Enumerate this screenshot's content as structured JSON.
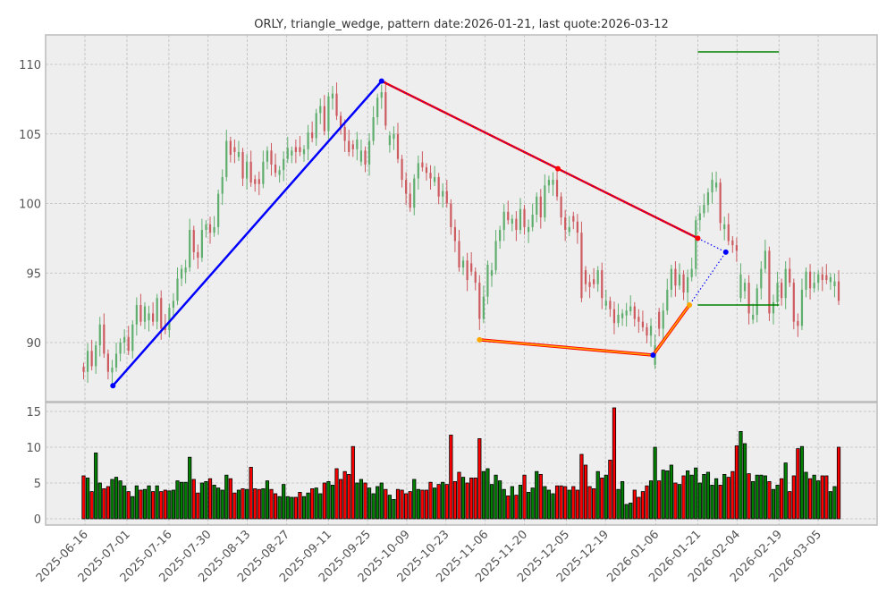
{
  "chart_data": {
    "type": "candlestick",
    "title": "ORLY, triangle_wedge, pattern date:2026-01-21, last quote:2026-03-12",
    "xlabel": "",
    "ylabel": "",
    "grid": true,
    "price_ylim": [
      86,
      112
    ],
    "price_yticks": [
      90,
      95,
      100,
      105,
      110
    ],
    "volume_ylim": [
      -0.5,
      16.5
    ],
    "volume_yticks": [
      0,
      5,
      10,
      15
    ],
    "x_start_date": "2025-06-16",
    "xticks": [
      "2025-06-16",
      "2025-07-01",
      "2025-07-16",
      "2025-07-30",
      "2025-08-13",
      "2025-08-27",
      "2025-09-11",
      "2025-09-25",
      "2025-10-09",
      "2025-10-23",
      "2025-11-06",
      "2025-11-20",
      "2025-12-05",
      "2025-12-19",
      "2026-01-06",
      "2026-01-21",
      "2026-02-04",
      "2026-02-19",
      "2026-03-05"
    ],
    "close": [
      87.9,
      89.4,
      88.3,
      89.8,
      91.3,
      89.2,
      87.9,
      88.2,
      89.2,
      90.0,
      90.4,
      89.4,
      91.3,
      92.7,
      91.5,
      92.6,
      92.1,
      91.5,
      93.2,
      91.0,
      90.9,
      92.5,
      93.0,
      94.6,
      95.3,
      95.4,
      98.1,
      96.5,
      96.1,
      98.1,
      98.5,
      97.9,
      98.3,
      100.7,
      101.9,
      104.5,
      103.5,
      103.7,
      103.7,
      101.8,
      103.0,
      101.5,
      101.4,
      101.4,
      103.0,
      103.8,
      102.8,
      102.2,
      102.4,
      103.2,
      104.0,
      103.8,
      103.7,
      103.7,
      103.9,
      105.1,
      104.7,
      106.5,
      107.0,
      105.2,
      107.7,
      107.9,
      106.3,
      105.5,
      104.5,
      103.7,
      103.9,
      104.6,
      103.8,
      102.8,
      104.5,
      106.2,
      107.6,
      108.0,
      105.6,
      104.9,
      105.0,
      103.2,
      101.7,
      100.7,
      99.7,
      101.8,
      102.9,
      102.6,
      102.2,
      101.8,
      101.9,
      100.5,
      100.9,
      100.0,
      98.3,
      97.3,
      95.4,
      95.9,
      94.5,
      95.1,
      94.3,
      91.7,
      93.3,
      95.6,
      95.2,
      97.3,
      98.1,
      99.4,
      98.8,
      98.9,
      98.1,
      99.6,
      98.3,
      98.3,
      99.2,
      100.5,
      99.0,
      101.3,
      101.7,
      101.7,
      100.5,
      99.0,
      98.1,
      98.3,
      98.7,
      97.9,
      93.2,
      94.2,
      94.0,
      94.2,
      95.2,
      93.2,
      93.0,
      92.4,
      91.4,
      92.0,
      92.1,
      92.3,
      92.6,
      91.7,
      91.5,
      91.1,
      90.5,
      91.2,
      89.8,
      91.0,
      92.3,
      93.8,
      95.3,
      94.1,
      94.9,
      93.6,
      94.7,
      95.3,
      98.8,
      99.3,
      99.9,
      100.8,
      101.7,
      101.5,
      98.6,
      98.5,
      97.3,
      97.0,
      96.6,
      94.9,
      94.3,
      92.1,
      92.0,
      93.9,
      95.3,
      96.6,
      92.1,
      92.9,
      94.3,
      93.2,
      95.3,
      94.3,
      91.5,
      91.2,
      93.8,
      95.1,
      93.9,
      94.3,
      94.9,
      94.5,
      94.5,
      94.7,
      94.4,
      93.0
    ],
    "direction": "RGRGGRRGGGGRGGRGGRGRRGGGGGGRRGGRGGGGRRGRGRRRGGRRGGGGRRGGRGGRGGRRRRRGGRGGGGRGGRRRRGGRRRGRGRRRRGRRRRGGGGGGRGRGRGGGRGGGRRRGRRRRRRGRGRRGGGGRRRRGGRGGGRGRGGGGGGGGRGRRRGGRGGGGRGGRGRRRGGRGGRRGGR",
    "volume": [
      6.0,
      5.7,
      3.8,
      9.2,
      5.0,
      4.2,
      4.5,
      5.5,
      5.8,
      5.3,
      4.6,
      3.8,
      3.1,
      4.6,
      4.0,
      4.1,
      4.6,
      3.8,
      4.6,
      3.8,
      4.0,
      3.9,
      4.0,
      5.3,
      5.1,
      5.1,
      8.6,
      5.5,
      3.6,
      5.0,
      5.2,
      5.6,
      4.7,
      4.3,
      4.0,
      6.1,
      5.6,
      3.6,
      4.0,
      4.2,
      4.1,
      7.2,
      4.2,
      4.1,
      4.2,
      5.3,
      4.1,
      3.5,
      3.1,
      4.8,
      3.1,
      3.0,
      3.0,
      3.7,
      3.1,
      3.6,
      4.2,
      4.3,
      3.5,
      5.0,
      5.2,
      4.7,
      7.0,
      5.5,
      6.6,
      6.2,
      10.1,
      5.0,
      5.5,
      5.0,
      4.3,
      3.5,
      4.5,
      5.0,
      4.1,
      3.3,
      2.7,
      4.1,
      4.0,
      3.5,
      3.8,
      5.5,
      4.1,
      4.0,
      4.0,
      5.1,
      4.3,
      4.8,
      5.1,
      4.8,
      11.7,
      5.2,
      6.5,
      5.8,
      5.0,
      5.7,
      5.7,
      11.2,
      6.6,
      7.0,
      4.8,
      6.1,
      5.3,
      4.1,
      3.2,
      4.5,
      3.3,
      4.7,
      6.1,
      3.7,
      4.3,
      6.6,
      6.2,
      4.5,
      4.0,
      3.5,
      4.6,
      4.6,
      4.5,
      4.0,
      4.5,
      4.0,
      9.0,
      7.5,
      4.5,
      4.2,
      6.6,
      5.7,
      6.1,
      8.2,
      15.5,
      4.1,
      5.2,
      2.0,
      2.2,
      4.0,
      3.0,
      3.8,
      4.6,
      5.3,
      10.0,
      5.3,
      6.8,
      6.7,
      7.5,
      5.0,
      4.8,
      6.0,
      6.7,
      6.1,
      7.1,
      5.0,
      6.2,
      6.5,
      4.7,
      5.6,
      4.7,
      6.2,
      5.8,
      6.6,
      10.2,
      12.2,
      10.5,
      6.3,
      5.2,
      6.1,
      6.1,
      6.0,
      5.2,
      4.1,
      4.7,
      5.6,
      7.8,
      3.8,
      6.0,
      9.8,
      10.1,
      6.5,
      5.6,
      6.1,
      5.3,
      6.0,
      6.0,
      3.8,
      4.5,
      10.0
    ],
    "pattern_lines": [
      {
        "name": "upper-left-leg",
        "color": "#0000ff",
        "style": "solid",
        "points": [
          [
            "2025-06-26",
            86.9
          ],
          [
            "2025-09-30",
            108.8
          ]
        ]
      },
      {
        "name": "upper-trend",
        "color": "#ff0000",
        "style": "solid",
        "points": [
          [
            "2025-09-30",
            108.8
          ],
          [
            "2025-12-02",
            102.5
          ],
          [
            "2026-01-21",
            97.5
          ]
        ]
      },
      {
        "name": "projection",
        "color": "#0000ff",
        "style": "dotted",
        "points": [
          [
            "2026-01-21",
            97.5
          ],
          [
            "2026-01-31",
            96.5
          ],
          [
            "2026-01-18",
            92.7
          ]
        ]
      },
      {
        "name": "lower-trend",
        "color": "#ffa500",
        "style": "solid",
        "points": [
          [
            "2025-11-04",
            90.2
          ],
          [
            "2026-01-05",
            89.1
          ],
          [
            "2026-01-18",
            92.7
          ]
        ]
      },
      {
        "name": "target-high",
        "color": "#008000",
        "style": "solid",
        "points": [
          [
            "2026-01-21",
            110.9
          ],
          [
            "2026-02-19",
            110.9
          ]
        ]
      },
      {
        "name": "target-low",
        "color": "#008000",
        "style": "solid",
        "points": [
          [
            "2026-01-21",
            92.7
          ],
          [
            "2026-02-19",
            92.7
          ]
        ]
      }
    ],
    "markers": [
      {
        "date": "2025-06-26",
        "price": 86.9,
        "color": "#0000ff"
      },
      {
        "date": "2025-09-30",
        "price": 108.8,
        "color": "#0000ff"
      },
      {
        "date": "2025-12-02",
        "price": 102.5,
        "color": "#ff0000"
      },
      {
        "date": "2026-01-21",
        "price": 97.5,
        "color": "#ff0000"
      },
      {
        "date": "2026-01-31",
        "price": 96.5,
        "color": "#0000ff"
      },
      {
        "date": "2025-11-04",
        "price": 90.2,
        "color": "#ffa500"
      },
      {
        "date": "2026-01-05",
        "price": 89.1,
        "color": "#0000ff"
      },
      {
        "date": "2026-01-18",
        "price": 92.7,
        "color": "#ffa500"
      }
    ],
    "colors": {
      "up_candle": "#5fae6d",
      "down_candle": "#cc5a5f",
      "up_volume": "#008000",
      "down_volume": "#ff0000",
      "axes_bg": "#eeeeee"
    }
  }
}
